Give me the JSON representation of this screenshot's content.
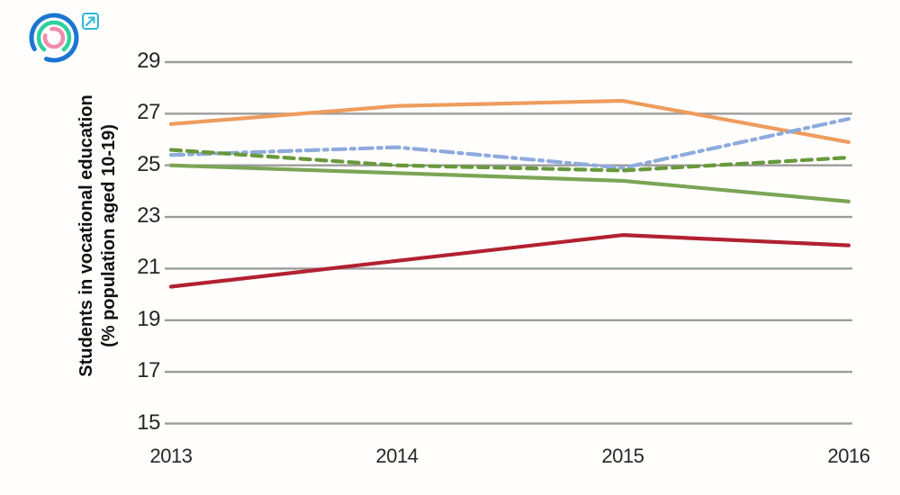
{
  "logo": {
    "name": "circular-arcs-logo",
    "colors": {
      "outer_arc": "#1B75D1",
      "middle_arc": "#2FCFA0",
      "inner_arc": "#F08CAE",
      "link_icon": "#2FB7D9"
    }
  },
  "chart_data": {
    "type": "line",
    "x": [
      2013,
      2014,
      2015,
      2016
    ],
    "x_labels": [
      "2013",
      "2014",
      "2015",
      "2016"
    ],
    "series": [
      {
        "name": "orange-solid",
        "color": "#EE9C5D",
        "style": "solid",
        "values": [
          26.6,
          27.3,
          27.5,
          25.9
        ]
      },
      {
        "name": "green-solid",
        "color": "#7BA555",
        "style": "solid",
        "values": [
          25.0,
          24.7,
          24.4,
          23.6
        ]
      },
      {
        "name": "blue-dash-dot",
        "color": "#8FAADC",
        "style": "dash-dot",
        "values": [
          25.4,
          25.7,
          24.9,
          26.8
        ]
      },
      {
        "name": "green-dashed",
        "color": "#68983C",
        "style": "dashed",
        "values": [
          25.6,
          25.0,
          24.8,
          25.3
        ]
      },
      {
        "name": "dark-red-solid",
        "color": "#B22130",
        "style": "solid",
        "values": [
          20.3,
          21.3,
          22.3,
          21.9
        ]
      }
    ],
    "ylabel_line1": "Students in vocational education",
    "ylabel_line2": "(% population aged 10-19)",
    "xlabel": "",
    "title": "",
    "ylim": [
      15,
      29
    ],
    "yticks": [
      29,
      27,
      25,
      23,
      21,
      19,
      17,
      15
    ],
    "grid": "horizontal",
    "gridline_color": "#9C9C9C",
    "legend": "none"
  }
}
